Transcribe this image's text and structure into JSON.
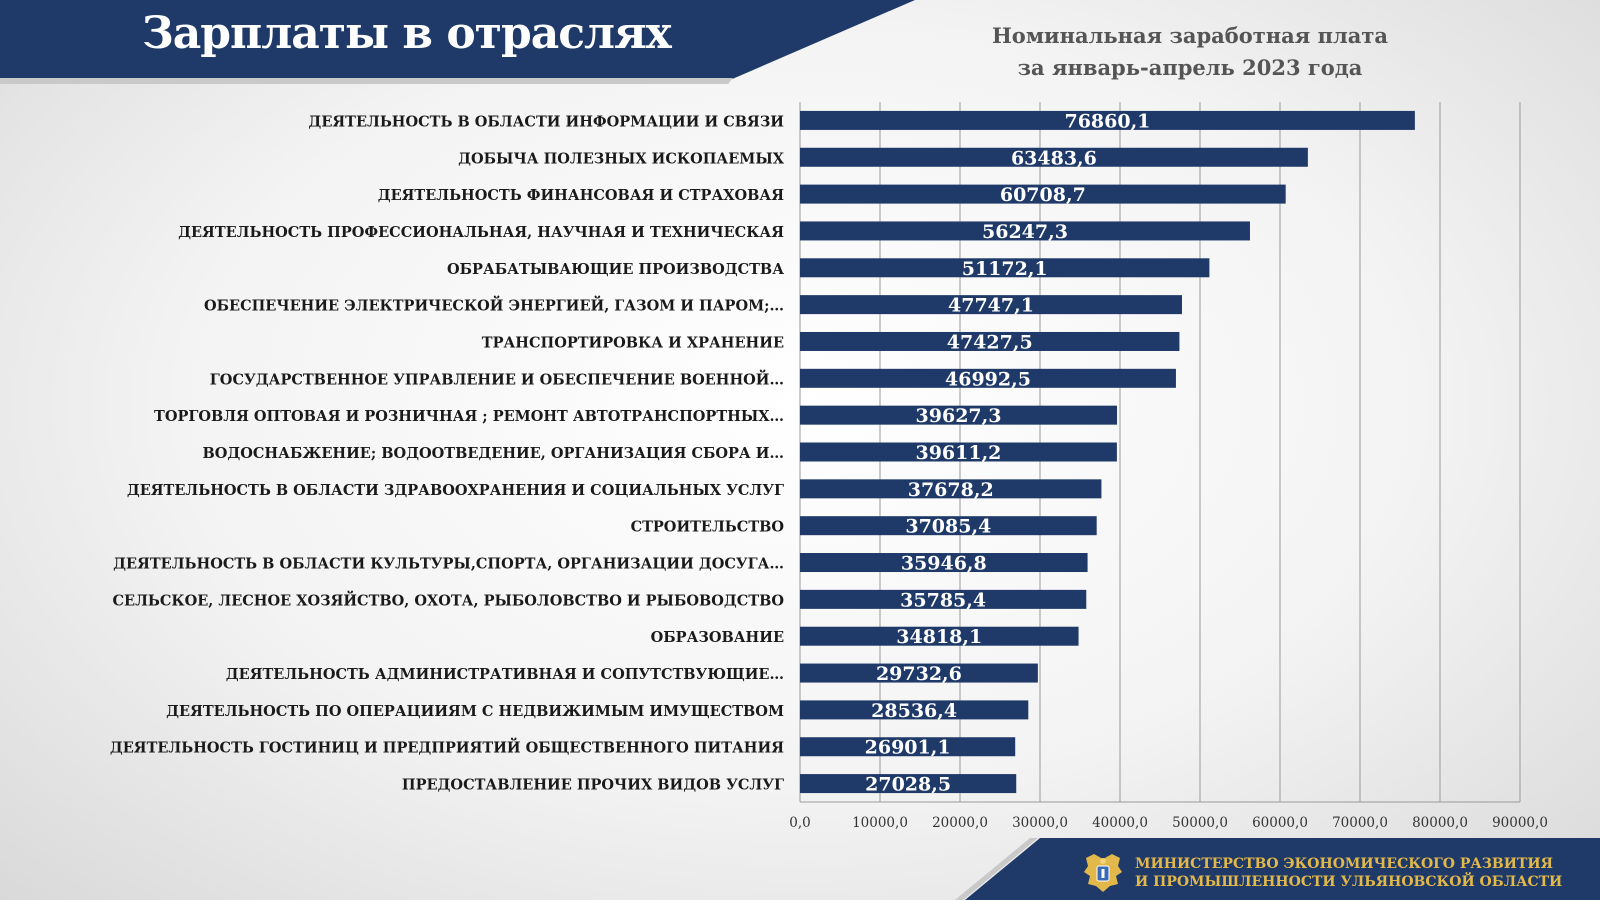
{
  "header": {
    "title": "Зарплаты в отраслях"
  },
  "chart_title": {
    "line1": "Номинальная заработная плата",
    "line2": "за январь-апрель 2023 года"
  },
  "colors": {
    "header_bg": "#1f3a68",
    "bar": "#1f3a68",
    "accent": "#e2b84a",
    "grid": "#9a9a9a"
  },
  "chart_data": {
    "type": "bar",
    "orientation": "horizontal",
    "categories": [
      "ДЕЯТЕЛЬНОСТЬ В ОБЛАСТИ ИНФОРМАЦИИ И СВЯЗИ",
      "ДОБЫЧА ПОЛЕЗНЫХ ИСКОПАЕМЫХ",
      "ДЕЯТЕЛЬНОСТЬ ФИНАНСОВАЯ И СТРАХОВАЯ",
      "ДЕЯТЕЛЬНОСТЬ ПРОФЕССИОНАЛЬНАЯ, НАУЧНАЯ И ТЕХНИЧЕСКАЯ",
      "ОБРАБАТЫВАЮЩИЕ ПРОИЗВОДСТВА",
      "ОБЕСПЕЧЕНИЕ ЭЛЕКТРИЧЕСКОЙ ЭНЕРГИЕЙ, ГАЗОМ И ПАРОМ;…",
      "ТРАНСПОРТИРОВКА И ХРАНЕНИЕ",
      "ГОСУДАРСТВЕННОЕ УПРАВЛЕНИЕ И ОБЕСПЕЧЕНИЕ  ВОЕННОЙ…",
      "ТОРГОВЛЯ ОПТОВАЯ И РОЗНИЧНАЯ ; РЕМОНТ  АВТОТРАНСПОРТНЫХ…",
      "ВОДОСНАБЖЕНИЕ; ВОДООТВЕДЕНИЕ, ОРГАНИЗАЦИЯ СБОРА И…",
      "ДЕЯТЕЛЬНОСТЬ В ОБЛАСТИ ЗДРАВООХРАНЕНИЯ И СОЦИАЛЬНЫХ  УСЛУГ",
      "СТРОИТЕЛЬСТВО",
      "ДЕЯТЕЛЬНОСТЬ В ОБЛАСТИ КУЛЬТУРЫ,СПОРТА, ОРГАНИЗАЦИИ ДОСУГА…",
      "СЕЛЬСКОЕ, ЛЕСНОЕ ХОЗЯЙСТВО, ОХОТА, РЫБОЛОВСТВО И РЫБОВОДСТВО",
      "ОБРАЗОВАНИЕ",
      "ДЕЯТЕЛЬНОСТЬ АДМИНИСТРАТИВНАЯ И СОПУТСТВУЮЩИЕ…",
      "ДЕЯТЕЛЬНОСТЬ ПО ОПЕРАЦИИЯМ С НЕДВИЖИМЫМ ИМУЩЕСТВОМ",
      "ДЕЯТЕЛЬНОСТЬ ГОСТИНИЦ И ПРЕДПРИЯТИЙ ОБЩЕСТВЕННОГО ПИТАНИЯ",
      "ПРЕДОСТАВЛЕНИЕ ПРОЧИХ ВИДОВ УСЛУГ"
    ],
    "values": [
      76860.1,
      63483.6,
      60708.7,
      56247.3,
      51172.1,
      47747.1,
      47427.5,
      46992.5,
      39627.3,
      39611.2,
      37678.2,
      37085.4,
      35946.8,
      35785.4,
      34818.1,
      29732.6,
      28536.4,
      26901.1,
      27028.5
    ],
    "value_labels": [
      "76860,1",
      "63483,6",
      "60708,7",
      "56247,3",
      "51172,1",
      "47747,1",
      "47427,5",
      "46992,5",
      "39627,3",
      "39611,2",
      "37678,2",
      "37085,4",
      "35946,8",
      "35785,4",
      "34818,1",
      "29732,6",
      "28536,4",
      "26901,1",
      "27028,5"
    ],
    "xlim": [
      0,
      90000
    ],
    "x_ticks": [
      0,
      10000,
      20000,
      30000,
      40000,
      50000,
      60000,
      70000,
      80000,
      90000
    ],
    "x_tick_labels": [
      "0,0",
      "10000,0",
      "20000,0",
      "30000,0",
      "40000,0",
      "50000,0",
      "60000,0",
      "70000,0",
      "80000,0",
      "90000,0"
    ],
    "grid": "vertical",
    "legend": "none"
  },
  "footer": {
    "line1": "МИНИСТЕРСТВО ЭКОНОМИЧЕСКОГО РАЗВИТИЯ",
    "line2": "И ПРОМЫШЛЕННОСТИ УЛЬЯНОВСКОЙ ОБЛАСТИ",
    "emblem_icon": "coat-of-arms-icon"
  }
}
